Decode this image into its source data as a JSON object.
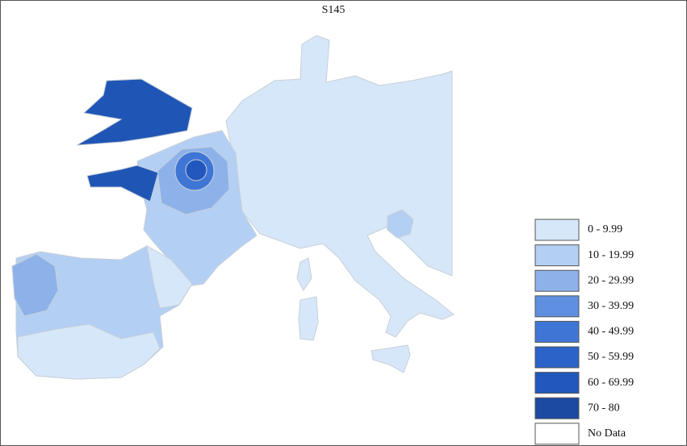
{
  "title": "S145",
  "legend": {
    "items": [
      {
        "label": "0 - 9.99",
        "color": "#d6e7f9"
      },
      {
        "label": "10 - 19.99",
        "color": "#b3cff3"
      },
      {
        "label": "20 - 29.99",
        "color": "#8db2ea"
      },
      {
        "label": "30 - 39.99",
        "color": "#5e8fe0"
      },
      {
        "label": "40 - 49.99",
        "color": "#3f76d6"
      },
      {
        "label": "50 - 59.99",
        "color": "#2c63c8"
      },
      {
        "label": "60 - 69.99",
        "color": "#2258bd"
      },
      {
        "label": "70 - 80",
        "color": "#1c4aa3"
      },
      {
        "label": "No Data",
        "color": "#ffffff"
      }
    ]
  }
}
